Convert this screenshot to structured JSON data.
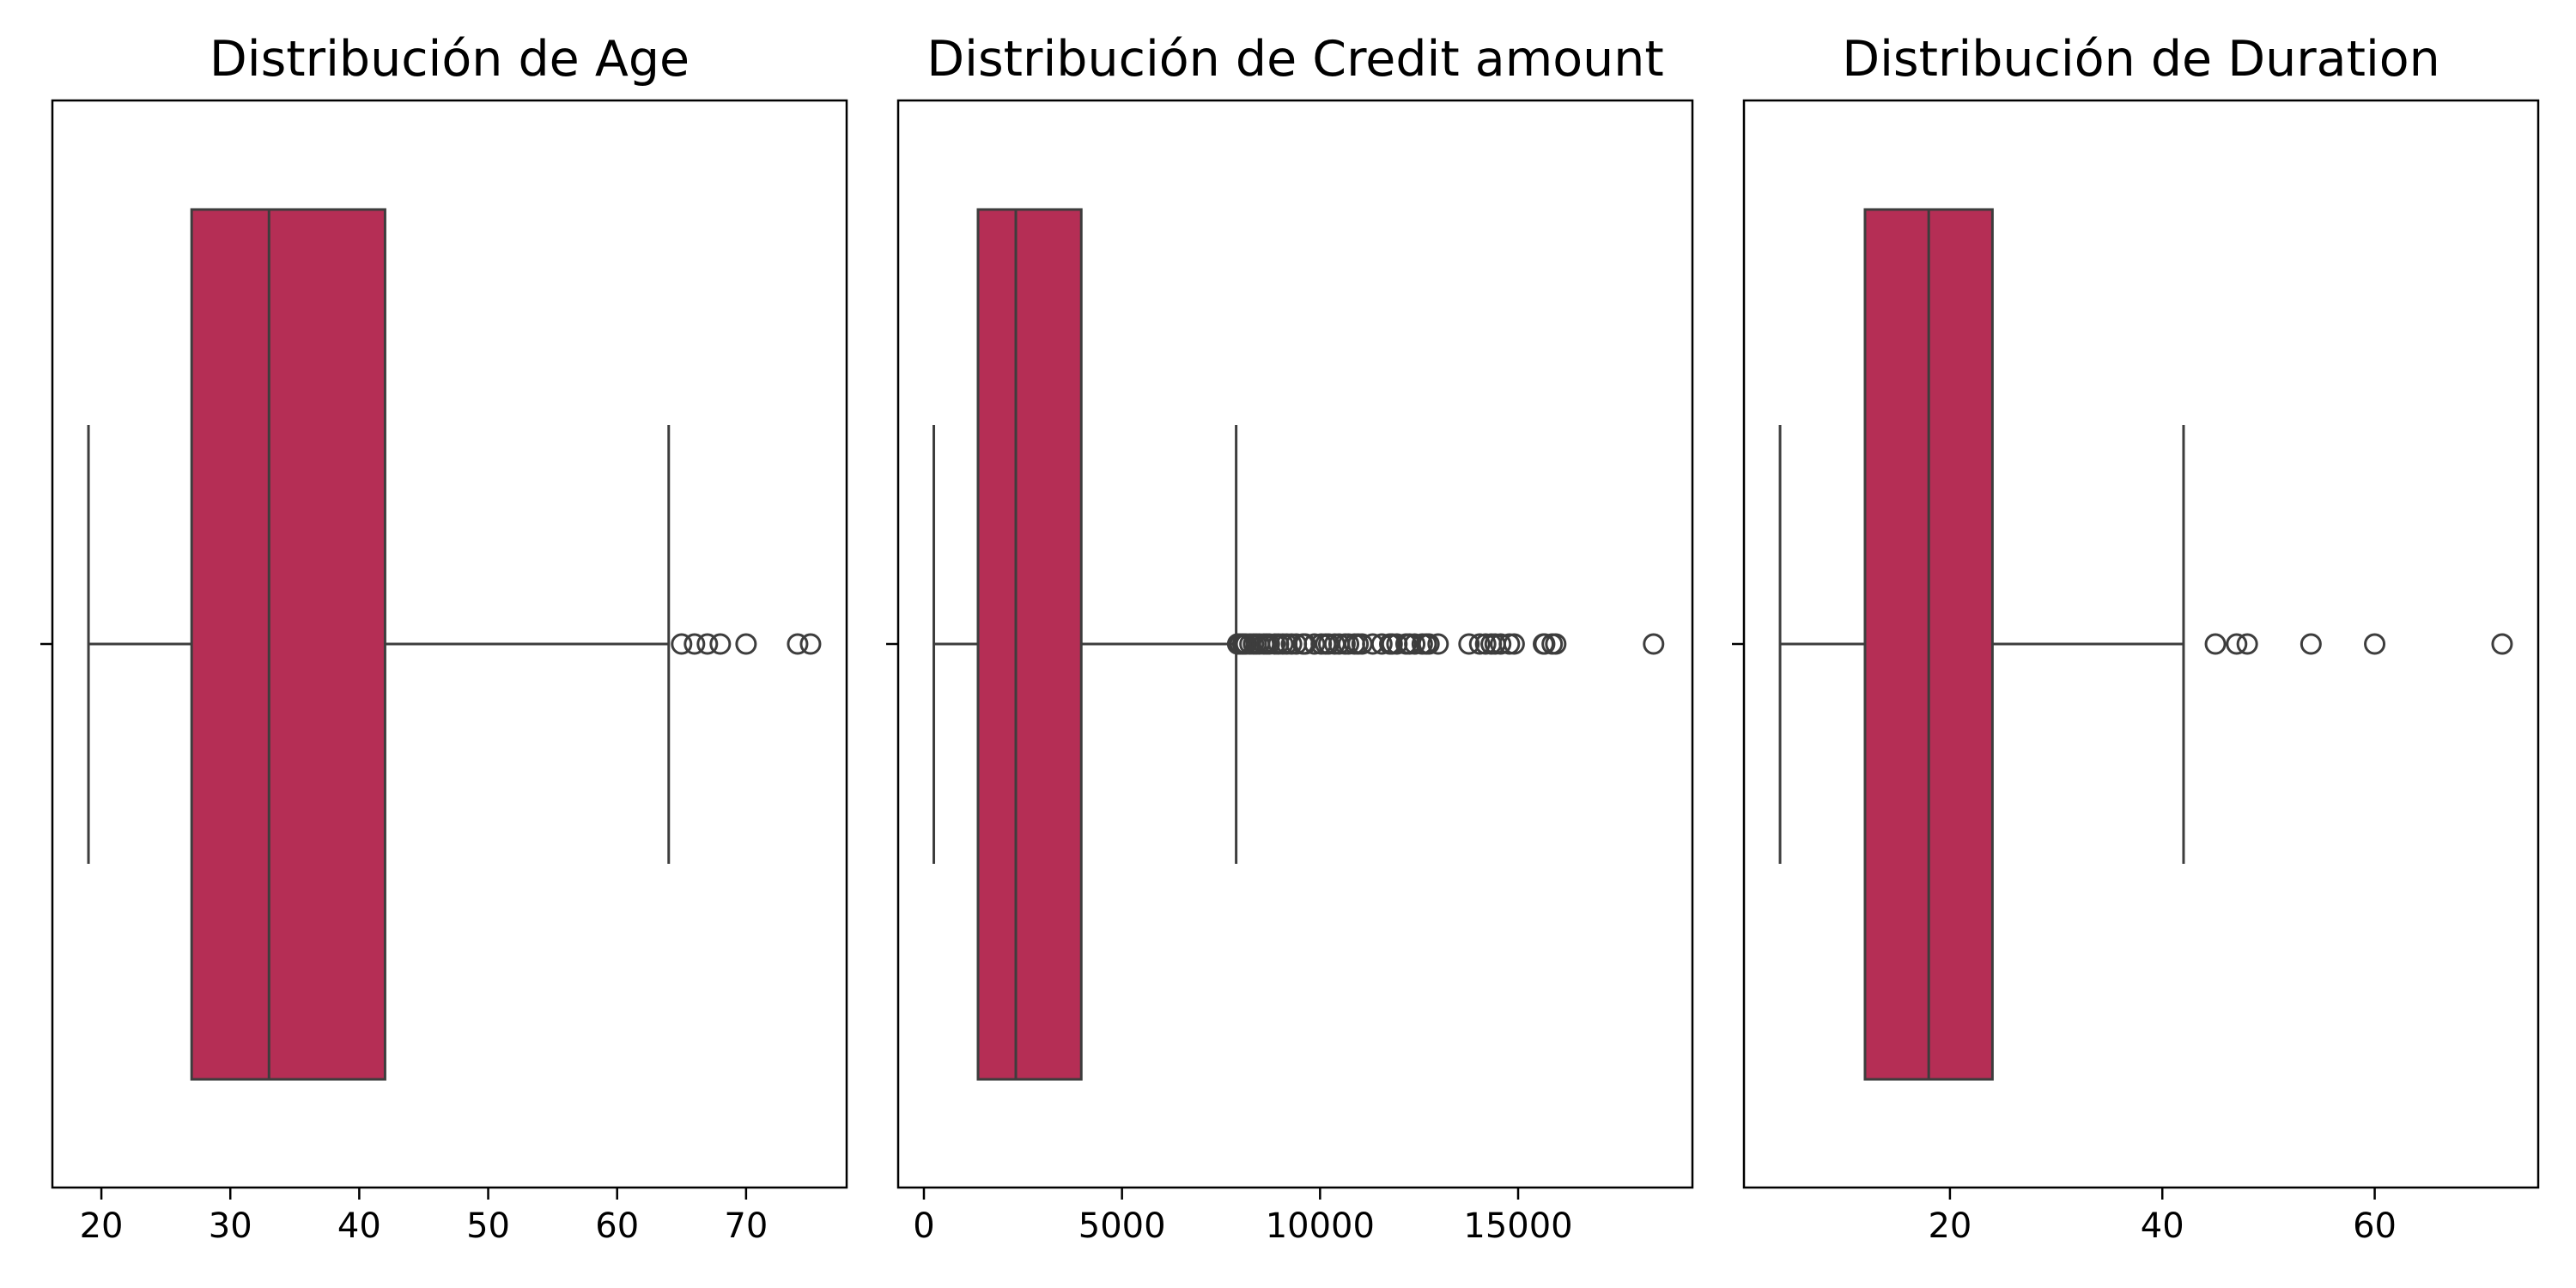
{
  "chart_data": [
    {
      "type": "boxplot",
      "title": "Distribución de Age",
      "xlabel": "",
      "ylabel": "",
      "orientation": "horizontal",
      "xlim": [
        16.2,
        77.8
      ],
      "xticks": [
        20,
        30,
        40,
        50,
        60,
        70
      ],
      "stats": {
        "whisker_low": 19,
        "q1": 27,
        "median": 33,
        "q3": 42,
        "whisker_high": 64
      },
      "outliers": [
        65,
        66,
        67,
        68,
        70,
        74,
        75
      ],
      "box_color": "#b52e55",
      "grid": false
    },
    {
      "type": "boxplot",
      "title": "Distribución de Credit amount",
      "xlabel": "",
      "ylabel": "",
      "orientation": "horizontal",
      "xlim": [
        -650,
        19400
      ],
      "xticks": [
        0,
        5000,
        10000,
        15000
      ],
      "stats": {
        "whisker_low": 250,
        "q1": 1366,
        "median": 2320,
        "q3": 3972,
        "whisker_high": 7882
      },
      "outliers": [
        7920,
        7980,
        8050,
        8070,
        8130,
        8230,
        8320,
        8390,
        8470,
        8580,
        8650,
        8720,
        8860,
        8950,
        9060,
        9160,
        9280,
        9400,
        9570,
        9630,
        9860,
        10030,
        10140,
        10220,
        10370,
        10480,
        10630,
        10720,
        10870,
        10960,
        11060,
        11330,
        11560,
        11760,
        11820,
        11940,
        12170,
        12260,
        12390,
        12580,
        12680,
        12750,
        12980,
        13760,
        14030,
        14180,
        14320,
        14420,
        14560,
        14780,
        14900,
        15640,
        15670,
        15860,
        15950,
        18420
      ],
      "box_color": "#b52e55",
      "grid": false
    },
    {
      "type": "boxplot",
      "title": "Distribución de Duration",
      "xlabel": "",
      "ylabel": "",
      "orientation": "horizontal",
      "xlim": [
        0.6,
        75.4
      ],
      "xticks": [
        20,
        40,
        60
      ],
      "stats": {
        "whisker_low": 4,
        "q1": 12,
        "median": 18,
        "q3": 24,
        "whisker_high": 42
      },
      "outliers": [
        45,
        47,
        48,
        54,
        60,
        72
      ],
      "box_color": "#b52e55",
      "grid": false
    }
  ]
}
